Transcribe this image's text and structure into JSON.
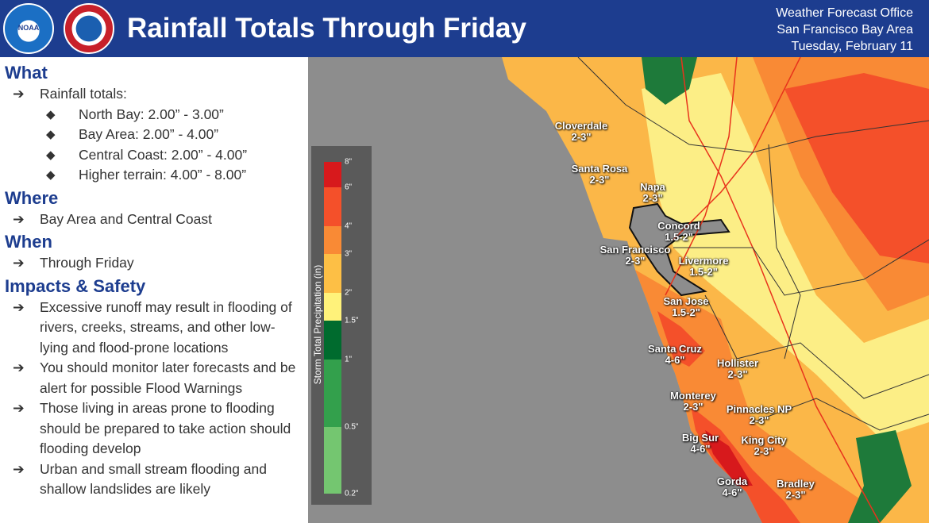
{
  "header": {
    "title": "Rainfall Totals Through Friday",
    "office": "Weather Forecast Office",
    "area": "San Francisco Bay Area",
    "date": "Tuesday, February 11",
    "logo_noaa": "NOAA",
    "logo_nws": "NATIONAL WEATHER SERVICE"
  },
  "sections": {
    "what": {
      "heading": "What",
      "bullet": "Rainfall totals:",
      "items": [
        "North Bay: 2.00” - 3.00”",
        "Bay Area: 2.00” - 4.00”",
        "Central Coast: 2.00” - 4.00”",
        "Higher terrain: 4.00” - 8.00”"
      ]
    },
    "where": {
      "heading": "Where",
      "bullet": "Bay Area and Central Coast"
    },
    "when": {
      "heading": "When",
      "bullet": "Through Friday"
    },
    "impacts": {
      "heading": "Impacts & Safety",
      "bullets": [
        "Excessive runoff may result in flooding of rivers, creeks, streams, and other low-lying and flood-prone locations",
        "You should monitor later forecasts and be alert for possible Flood Warnings",
        "Those living in areas prone to flooding should be prepared to take action should flooding develop",
        "Urban and small stream flooding and shallow landslides are likely"
      ]
    }
  },
  "icons": {
    "arrow": "➔",
    "diamond": "◆"
  },
  "legend": {
    "title": "Storm Total Precipitation (in)",
    "ticks": [
      "8\"",
      "6\"",
      "4\"",
      "3\"",
      "2\"",
      "1.5\"",
      "1\"",
      "0.5\"",
      "0.2\""
    ],
    "colors": [
      "#d7191c",
      "#f4502a",
      "#f98a35",
      "#fdbf45",
      "#fff27a",
      "#006b2e",
      "#33a04c",
      "#74c670"
    ]
  },
  "cities": [
    {
      "name": "Cloverdale",
      "range": "2-3\""
    },
    {
      "name": "Santa Rosa",
      "range": "2-3\""
    },
    {
      "name": "Napa",
      "range": "2-3\""
    },
    {
      "name": "Concord",
      "range": "1.5-2\""
    },
    {
      "name": "San Francisco",
      "range": "2-3\""
    },
    {
      "name": "Livermore",
      "range": "1.5-2\""
    },
    {
      "name": "San Jose",
      "range": "1.5-2\""
    },
    {
      "name": "Santa Cruz",
      "range": "4-6\""
    },
    {
      "name": "Hollister",
      "range": "2-3\""
    },
    {
      "name": "Monterey",
      "range": "2-3\""
    },
    {
      "name": "Pinnacles NP",
      "range": "2-3\""
    },
    {
      "name": "Big Sur",
      "range": "4-6\""
    },
    {
      "name": "King City",
      "range": "2-3\""
    },
    {
      "name": "Gorda",
      "range": "4-6\""
    },
    {
      "name": "Bradley",
      "range": "2-3\""
    }
  ]
}
